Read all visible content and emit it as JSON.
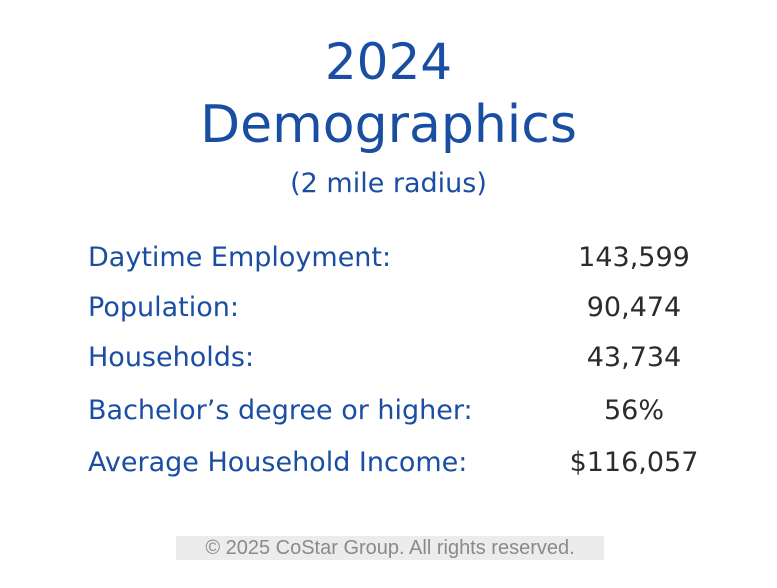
{
  "header": {
    "year": "2024",
    "title": "Demographics",
    "subtitle": "(2 mile radius)"
  },
  "table": {
    "rows": [
      [
        "Daytime Employment:",
        "143,599"
      ],
      [
        "Population:",
        "90,474"
      ],
      [
        "Households:",
        "43,734"
      ],
      [
        "Bachelor’s degree or higher:",
        "56%"
      ],
      [
        "Average Household Income:",
        "$116,057"
      ]
    ]
  },
  "footer": {
    "copyright": "© 2025 CoStar Group. All rights reserved."
  }
}
